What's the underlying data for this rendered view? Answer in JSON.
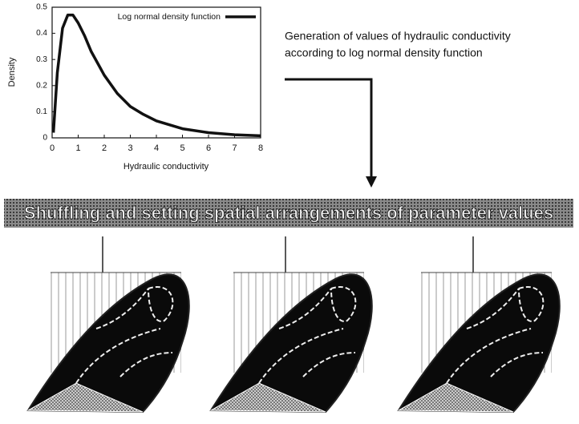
{
  "chart_data": {
    "type": "line",
    "x_label": "Hydraulic conductivity",
    "y_label": "Density",
    "x": [
      0.05,
      0.2,
      0.4,
      0.6,
      0.8,
      1.0,
      1.25,
      1.5,
      2,
      2.5,
      3,
      3.5,
      4,
      5,
      6,
      7,
      8
    ],
    "series": [
      {
        "name": "Log normal density function",
        "color": "#111111",
        "values": [
          0.02,
          0.25,
          0.42,
          0.47,
          0.47,
          0.44,
          0.39,
          0.33,
          0.24,
          0.17,
          0.12,
          0.09,
          0.065,
          0.035,
          0.02,
          0.012,
          0.008
        ]
      }
    ],
    "xlim": [
      0,
      8
    ],
    "ylim": [
      0,
      0.5
    ],
    "xticks": [
      0,
      1,
      2,
      3,
      4,
      5,
      6,
      7,
      8
    ],
    "yticks": [
      0,
      0.1,
      0.2,
      0.3,
      0.4,
      0.5
    ],
    "legend": "top-right"
  },
  "diagram": {
    "caption": [
      "Generation of values of hydraulic conductivity",
      "according to log normal density function"
    ],
    "banner": "Shuffling and setting spatial arrangements of parameter values"
  }
}
